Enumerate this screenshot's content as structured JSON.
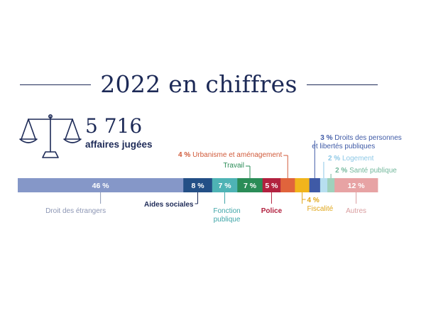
{
  "header": {
    "title": "2022 en chiffres"
  },
  "summary": {
    "number": "5 716",
    "label": "affaires jugées",
    "icon": "scales-of-justice-icon"
  },
  "colors": {
    "navy": "#1d2a57"
  },
  "chart_data": {
    "type": "bar",
    "stacked": true,
    "orientation": "horizontal",
    "total_percent": 100,
    "segments": [
      {
        "label": "Droit des étrangers",
        "value": 46,
        "value_label": "46 %",
        "color": "#8597c8",
        "label_color": "#8c96b4",
        "label_position": "bottom"
      },
      {
        "label": "Aides sociales",
        "value": 8,
        "value_label": "8 %",
        "color": "#234f86",
        "label_color": "#1d2a57",
        "label_position": "bottom"
      },
      {
        "label": "Fonction publique",
        "value": 7,
        "value_label": "7 %",
        "color": "#4eb3b5",
        "label_color": "#3fa5a8",
        "label_position": "bottom"
      },
      {
        "label": "Travail",
        "value": 7,
        "value_label": "7 %",
        "color": "#2a8c57",
        "label_color": "#2a8c57",
        "label_position": "top"
      },
      {
        "label": "Police",
        "value": 5,
        "value_label": "5 %",
        "color": "#b2213f",
        "label_color": "#b2213f",
        "label_position": "bottom"
      },
      {
        "label": "Urbanisme et aménagement",
        "value": 4,
        "value_label": "4 %",
        "color": "#e0643c",
        "label_color": "#d05a3a",
        "label_position": "top"
      },
      {
        "label": "Fiscalité",
        "value": 4,
        "value_label": "4 %",
        "color": "#f1b51c",
        "label_color": "#e0a61a",
        "label_position": "bottom"
      },
      {
        "label": "Droits des personnes et libertés publiques",
        "value": 3,
        "value_label": "3 %",
        "color": "#3f5aa6",
        "label_color": "#3f5aa6",
        "label_position": "top"
      },
      {
        "label": "Logement",
        "value": 2,
        "value_label": "2 %",
        "color": "#b7dff0",
        "label_color": "#8dc8e6",
        "label_position": "top"
      },
      {
        "label": "Santé publique",
        "value": 2,
        "value_label": "2 %",
        "color": "#9fd1bc",
        "label_color": "#72b79b",
        "label_position": "top"
      },
      {
        "label": "Autres",
        "value": 12,
        "value_label": "12 %",
        "color": "#e7a3a4",
        "label_color": "#d99c9e",
        "label_position": "bottom"
      }
    ]
  }
}
